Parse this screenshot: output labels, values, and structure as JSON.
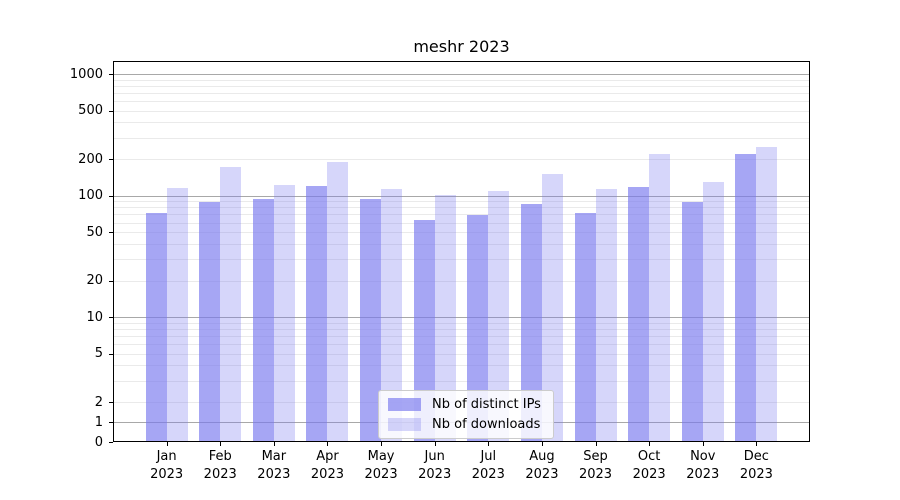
{
  "chart_data": {
    "type": "bar",
    "title": "meshr 2023",
    "categories": [
      "Jan 2023",
      "Feb 2023",
      "Mar 2023",
      "Apr 2023",
      "May 2023",
      "Jun 2023",
      "Jul 2023",
      "Aug 2023",
      "Sep 2023",
      "Oct 2023",
      "Nov 2023",
      "Dec 2023"
    ],
    "series": [
      {
        "name": "Nb of distinct IPs",
        "color": "rgba(119,119,238,0.65)",
        "values": [
          72,
          88,
          94,
          121,
          94,
          63,
          69,
          86,
          72,
          118,
          88,
          218
        ]
      },
      {
        "name": "Nb of downloads",
        "color": "rgba(119,119,238,0.30)",
        "values": [
          116,
          173,
          123,
          188,
          113,
          102,
          110,
          150,
          114,
          220,
          129,
          252
        ]
      }
    ],
    "yscale": "symlog",
    "yticks": [
      0,
      1,
      2,
      5,
      10,
      20,
      50,
      100,
      200,
      500,
      1000
    ],
    "ylim": [
      0,
      1280
    ],
    "xlabel": "",
    "ylabel": "",
    "grid": "both",
    "legend_position": "lower center",
    "colors": {
      "bar_ips": "rgba(119,119,238,0.65)",
      "bar_downloads": "rgba(119,119,238,0.30)",
      "major_grid": "#a8a8a8",
      "minor_grid": "#eaeaea",
      "spine": "#000000"
    }
  }
}
